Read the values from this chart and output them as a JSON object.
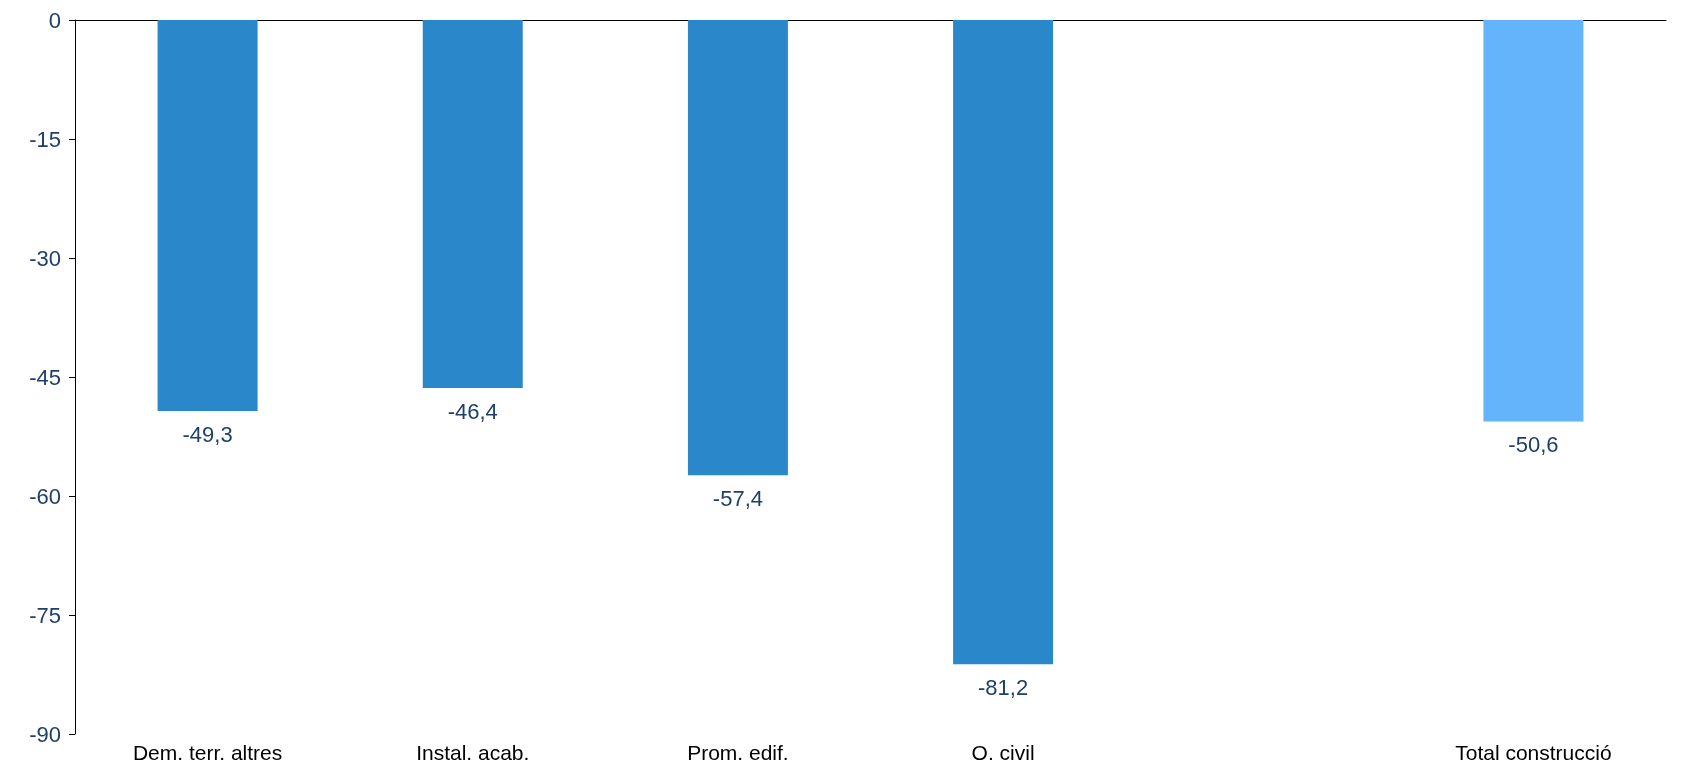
{
  "chart_data": {
    "type": "bar",
    "categories": [
      "Dem. terr. altres",
      "Instal. acab.",
      "Prom. edif.",
      "O. civil",
      null,
      "Total construcció"
    ],
    "values": [
      -49.3,
      -46.4,
      -57.4,
      -81.2,
      null,
      -50.6
    ],
    "value_labels": [
      "-49,3",
      "-46,4",
      "-57,4",
      "-81,2",
      null,
      "-50,6"
    ],
    "colors": [
      "#2a87ca",
      "#2a87ca",
      "#2a87ca",
      "#2a87ca",
      "#2a87ca",
      "#64b4fc"
    ],
    "ylim": [
      -90,
      0
    ],
    "yticks": [
      -90,
      -75,
      -60,
      -45,
      -30,
      -15,
      0
    ]
  }
}
